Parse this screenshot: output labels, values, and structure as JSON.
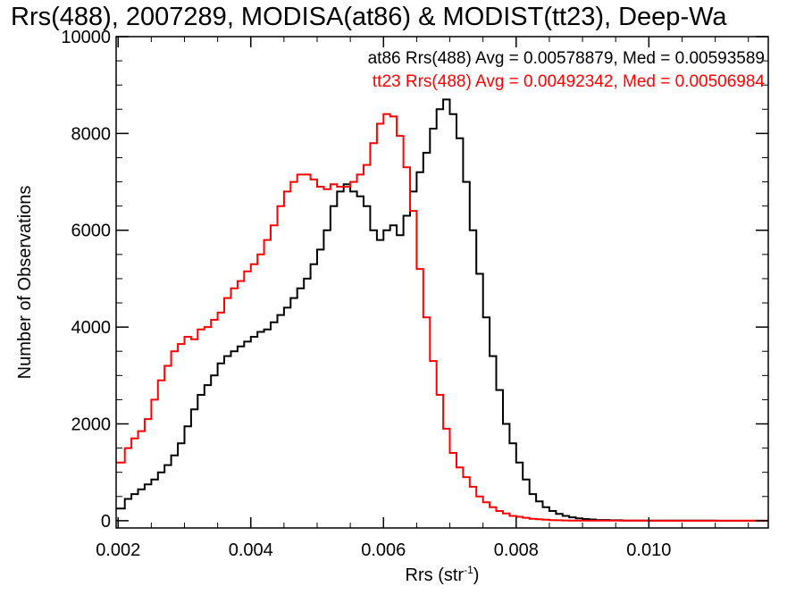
{
  "chart_data": {
    "type": "line",
    "title": "Rrs(488), 2007289, MODISA(at86) & MODIST(tt23), Deep-Wa",
    "xlabel": "Rrs (str",
    "xlabel_sup": "-1",
    "xlabel_close": ")",
    "ylabel": "Number of Observations",
    "xlim": [
      0.00197,
      0.0118
    ],
    "ylim": [
      -150,
      10000
    ],
    "x_ticks": [
      0.002,
      0.004,
      0.006,
      0.008,
      0.01
    ],
    "x_tick_labels": [
      "0.002",
      "0.004",
      "0.006",
      "0.008",
      "0.010"
    ],
    "y_ticks": [
      0,
      2000,
      4000,
      6000,
      8000,
      10000
    ],
    "y_tick_labels": [
      "0",
      "2000",
      "4000",
      "6000",
      "8000",
      "10000"
    ],
    "grid": false,
    "legend_position": "top-right",
    "series": [
      {
        "name": "at86",
        "label": "at86 Rrs(488) Avg = 0.00578879, Med = 0.00593589",
        "color": "#000000",
        "x": [
          0.00197,
          0.0021,
          0.0022,
          0.0023,
          0.0024,
          0.0025,
          0.0026,
          0.0027,
          0.0028,
          0.0029,
          0.003,
          0.0031,
          0.0032,
          0.0033,
          0.0034,
          0.0035,
          0.0036,
          0.0037,
          0.0038,
          0.0039,
          0.004,
          0.0041,
          0.0042,
          0.0043,
          0.0044,
          0.0045,
          0.0046,
          0.0047,
          0.0048,
          0.0049,
          0.005,
          0.0051,
          0.0052,
          0.0053,
          0.0054,
          0.0055,
          0.0056,
          0.0057,
          0.0058,
          0.0059,
          0.006,
          0.0061,
          0.0062,
          0.0063,
          0.0064,
          0.0065,
          0.0066,
          0.0067,
          0.0068,
          0.0069,
          0.007,
          0.0071,
          0.0072,
          0.0073,
          0.0074,
          0.0075,
          0.0076,
          0.0077,
          0.0078,
          0.0079,
          0.008,
          0.0081,
          0.0082,
          0.0083,
          0.0084,
          0.0085,
          0.0086,
          0.0087,
          0.0088,
          0.0089,
          0.009,
          0.0091,
          0.0092,
          0.0094,
          0.0096,
          0.01,
          0.0105,
          0.011,
          0.0118
        ],
        "y": [
          250,
          450,
          550,
          650,
          750,
          850,
          1000,
          1150,
          1350,
          1600,
          1950,
          2300,
          2600,
          2800,
          3000,
          3250,
          3400,
          3500,
          3600,
          3700,
          3800,
          3900,
          3950,
          4100,
          4250,
          4400,
          4600,
          4800,
          5000,
          5300,
          5600,
          6000,
          6500,
          6800,
          6950,
          6800,
          6700,
          6500,
          6000,
          5800,
          6000,
          6100,
          5900,
          6300,
          6800,
          7200,
          7600,
          8100,
          8500,
          8700,
          8400,
          7900,
          7000,
          6000,
          5100,
          4200,
          3400,
          2700,
          2000,
          1600,
          1200,
          850,
          550,
          400,
          280,
          200,
          140,
          100,
          70,
          50,
          35,
          25,
          15,
          8,
          4,
          2,
          1,
          0,
          0
        ]
      },
      {
        "name": "tt23",
        "label": "tt23 Rrs(488) Avg = 0.00492342, Med = 0.00506984",
        "color": "#ff0000",
        "x": [
          0.00197,
          0.0021,
          0.0022,
          0.0023,
          0.0024,
          0.0025,
          0.0026,
          0.0027,
          0.0028,
          0.0029,
          0.003,
          0.0031,
          0.0032,
          0.0033,
          0.0034,
          0.0035,
          0.0036,
          0.0037,
          0.0038,
          0.0039,
          0.004,
          0.0041,
          0.0042,
          0.0043,
          0.0044,
          0.0045,
          0.0046,
          0.0047,
          0.0048,
          0.0049,
          0.005,
          0.0051,
          0.0052,
          0.0053,
          0.0054,
          0.0055,
          0.0056,
          0.0057,
          0.0058,
          0.0059,
          0.006,
          0.0061,
          0.0062,
          0.0063,
          0.0064,
          0.0065,
          0.0066,
          0.0067,
          0.0068,
          0.0069,
          0.007,
          0.0071,
          0.0072,
          0.0073,
          0.0074,
          0.0075,
          0.0076,
          0.0077,
          0.0078,
          0.0079,
          0.008,
          0.0081,
          0.0082,
          0.0083,
          0.0084,
          0.0085,
          0.0086,
          0.0087,
          0.0088,
          0.009,
          0.0095,
          0.01,
          0.011,
          0.0118
        ],
        "y": [
          1200,
          1500,
          1700,
          1850,
          2100,
          2500,
          2900,
          3200,
          3500,
          3650,
          3800,
          3750,
          3950,
          4000,
          4150,
          4300,
          4600,
          4800,
          4950,
          5150,
          5300,
          5500,
          5800,
          6100,
          6500,
          6800,
          7000,
          7150,
          7150,
          7050,
          6900,
          6850,
          6950,
          6900,
          6900,
          7000,
          7150,
          7350,
          7800,
          8200,
          8400,
          8350,
          7950,
          7300,
          6400,
          5200,
          4200,
          3300,
          2600,
          1900,
          1400,
          1100,
          900,
          700,
          500,
          380,
          280,
          200,
          150,
          100,
          80,
          60,
          40,
          30,
          20,
          12,
          8,
          5,
          3,
          2,
          1,
          0,
          0,
          0
        ]
      }
    ]
  }
}
